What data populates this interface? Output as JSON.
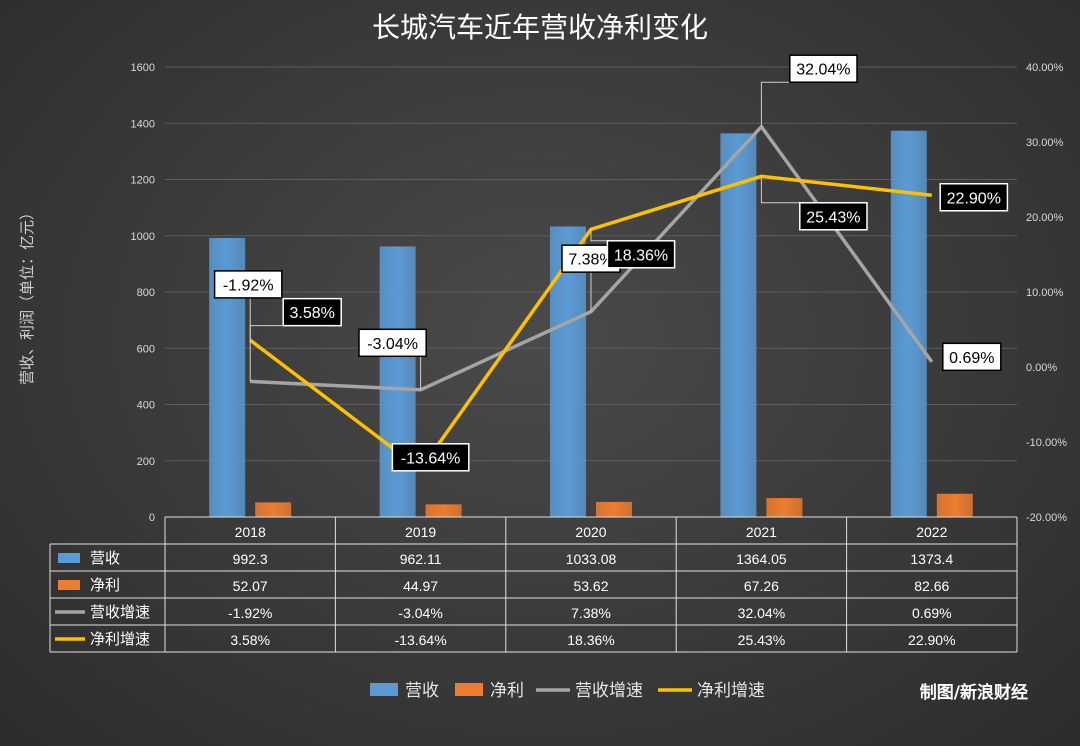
{
  "chart_data": {
    "type": "bar",
    "title": "长城汽车近年营收净利变化",
    "ylabel": "营收、利润（单位：亿元）",
    "xlabel": "",
    "categories": [
      "2018",
      "2019",
      "2020",
      "2021",
      "2022"
    ],
    "ylim": [
      0,
      1600
    ],
    "y_ticks": [
      "0",
      "200",
      "400",
      "600",
      "800",
      "1000",
      "1200",
      "1400",
      "1600"
    ],
    "y2lim": [
      -20,
      40
    ],
    "y2_ticks": [
      "-20.00%",
      "-10.00%",
      "0.00%",
      "10.00%",
      "20.00%",
      "30.00%",
      "40.00%"
    ],
    "series": [
      {
        "name": "营收",
        "kind": "bar",
        "axis": "left",
        "color": "#5b9bd5",
        "values": [
          992.3,
          962.11,
          1033.08,
          1364.05,
          1373.4
        ],
        "table_values": [
          "992.3",
          "962.11",
          "1033.08",
          "1364.05",
          "1373.4"
        ]
      },
      {
        "name": "净利",
        "kind": "bar",
        "axis": "left",
        "color": "#ed7d31",
        "values": [
          52.07,
          44.97,
          53.62,
          67.26,
          82.66
        ],
        "table_values": [
          "52.07",
          "44.97",
          "53.62",
          "67.26",
          "82.66"
        ]
      },
      {
        "name": "营收增速",
        "kind": "line",
        "axis": "right",
        "color": "#a5a5a5",
        "values": [
          -1.92,
          -3.04,
          7.38,
          32.04,
          0.69
        ],
        "table_values": [
          "-1.92%",
          "-3.04%",
          "7.38%",
          "32.04%",
          "0.69%"
        ]
      },
      {
        "name": "净利增速",
        "kind": "line",
        "axis": "right",
        "color": "#ffc000",
        "values": [
          3.58,
          -13.64,
          18.36,
          25.43,
          22.9
        ],
        "table_values": [
          "3.58%",
          "-13.64%",
          "18.36%",
          "25.43%",
          "22.90%"
        ]
      }
    ],
    "data_labels": [
      {
        "text": "-1.92%",
        "style": "light",
        "series": 2,
        "index": 0
      },
      {
        "text": "3.58%",
        "style": "dark",
        "series": 3,
        "index": 0
      },
      {
        "text": "-3.04%",
        "style": "light",
        "series": 2,
        "index": 1
      },
      {
        "text": "-13.64%",
        "style": "dark",
        "series": 3,
        "index": 1
      },
      {
        "text": "7.38%",
        "style": "light",
        "series": 2,
        "index": 2
      },
      {
        "text": "18.36%",
        "style": "dark",
        "series": 3,
        "index": 2
      },
      {
        "text": "32.04%",
        "style": "light",
        "series": 2,
        "index": 3
      },
      {
        "text": "25.43%",
        "style": "dark",
        "series": 3,
        "index": 3
      },
      {
        "text": "0.69%",
        "style": "light",
        "series": 2,
        "index": 4
      },
      {
        "text": "22.90%",
        "style": "dark",
        "series": 3,
        "index": 4
      }
    ],
    "legend": [
      "营收",
      "净利",
      "营收增速",
      "净利增速"
    ],
    "legend_position": "bottom",
    "credit": "制图/新浪财经"
  }
}
